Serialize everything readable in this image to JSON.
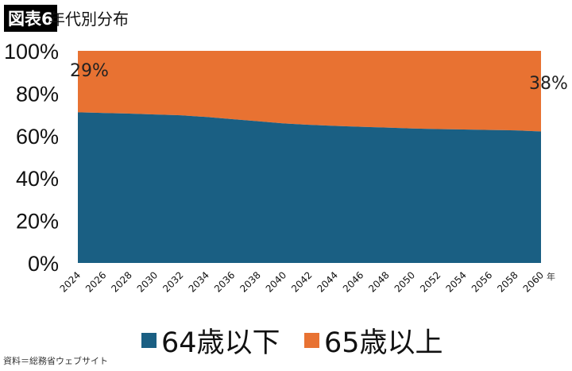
{
  "header": {
    "tag": "図表6",
    "title": "年代別分布"
  },
  "chart_data": {
    "type": "area",
    "stacked": "percent",
    "categories": [
      "2024",
      "2026",
      "2028",
      "2030",
      "2032",
      "2034",
      "2036",
      "2038",
      "2040",
      "2042",
      "2044",
      "2046",
      "2048",
      "2050",
      "2052",
      "2054",
      "2056",
      "2058",
      "2060"
    ],
    "x_unit": "年",
    "ylim": [
      0,
      100
    ],
    "yticks": [
      "0%",
      "20%",
      "40%",
      "60%",
      "80%",
      "100%"
    ],
    "grid": false,
    "legend_position": "bottom",
    "series": [
      {
        "name": "64歳以下",
        "color": "#1a5f83",
        "values": [
          71,
          70.7,
          70.4,
          70,
          69.6,
          68.8,
          67.8,
          66.8,
          65.8,
          65.1,
          64.6,
          64.2,
          63.8,
          63.4,
          63.1,
          62.9,
          62.7,
          62.5,
          62
        ]
      },
      {
        "name": "65歳以上",
        "color": "#e87232",
        "values": [
          29,
          29.3,
          29.6,
          30,
          30.4,
          31.2,
          32.2,
          33.2,
          34.2,
          34.9,
          35.4,
          35.8,
          36.2,
          36.6,
          36.9,
          37.1,
          37.3,
          37.5,
          38
        ]
      }
    ],
    "annotations": [
      {
        "text": "29%",
        "at": "2024"
      },
      {
        "text": "38%",
        "at": "2060"
      }
    ]
  },
  "source": "資料＝総務省ウェブサイト"
}
